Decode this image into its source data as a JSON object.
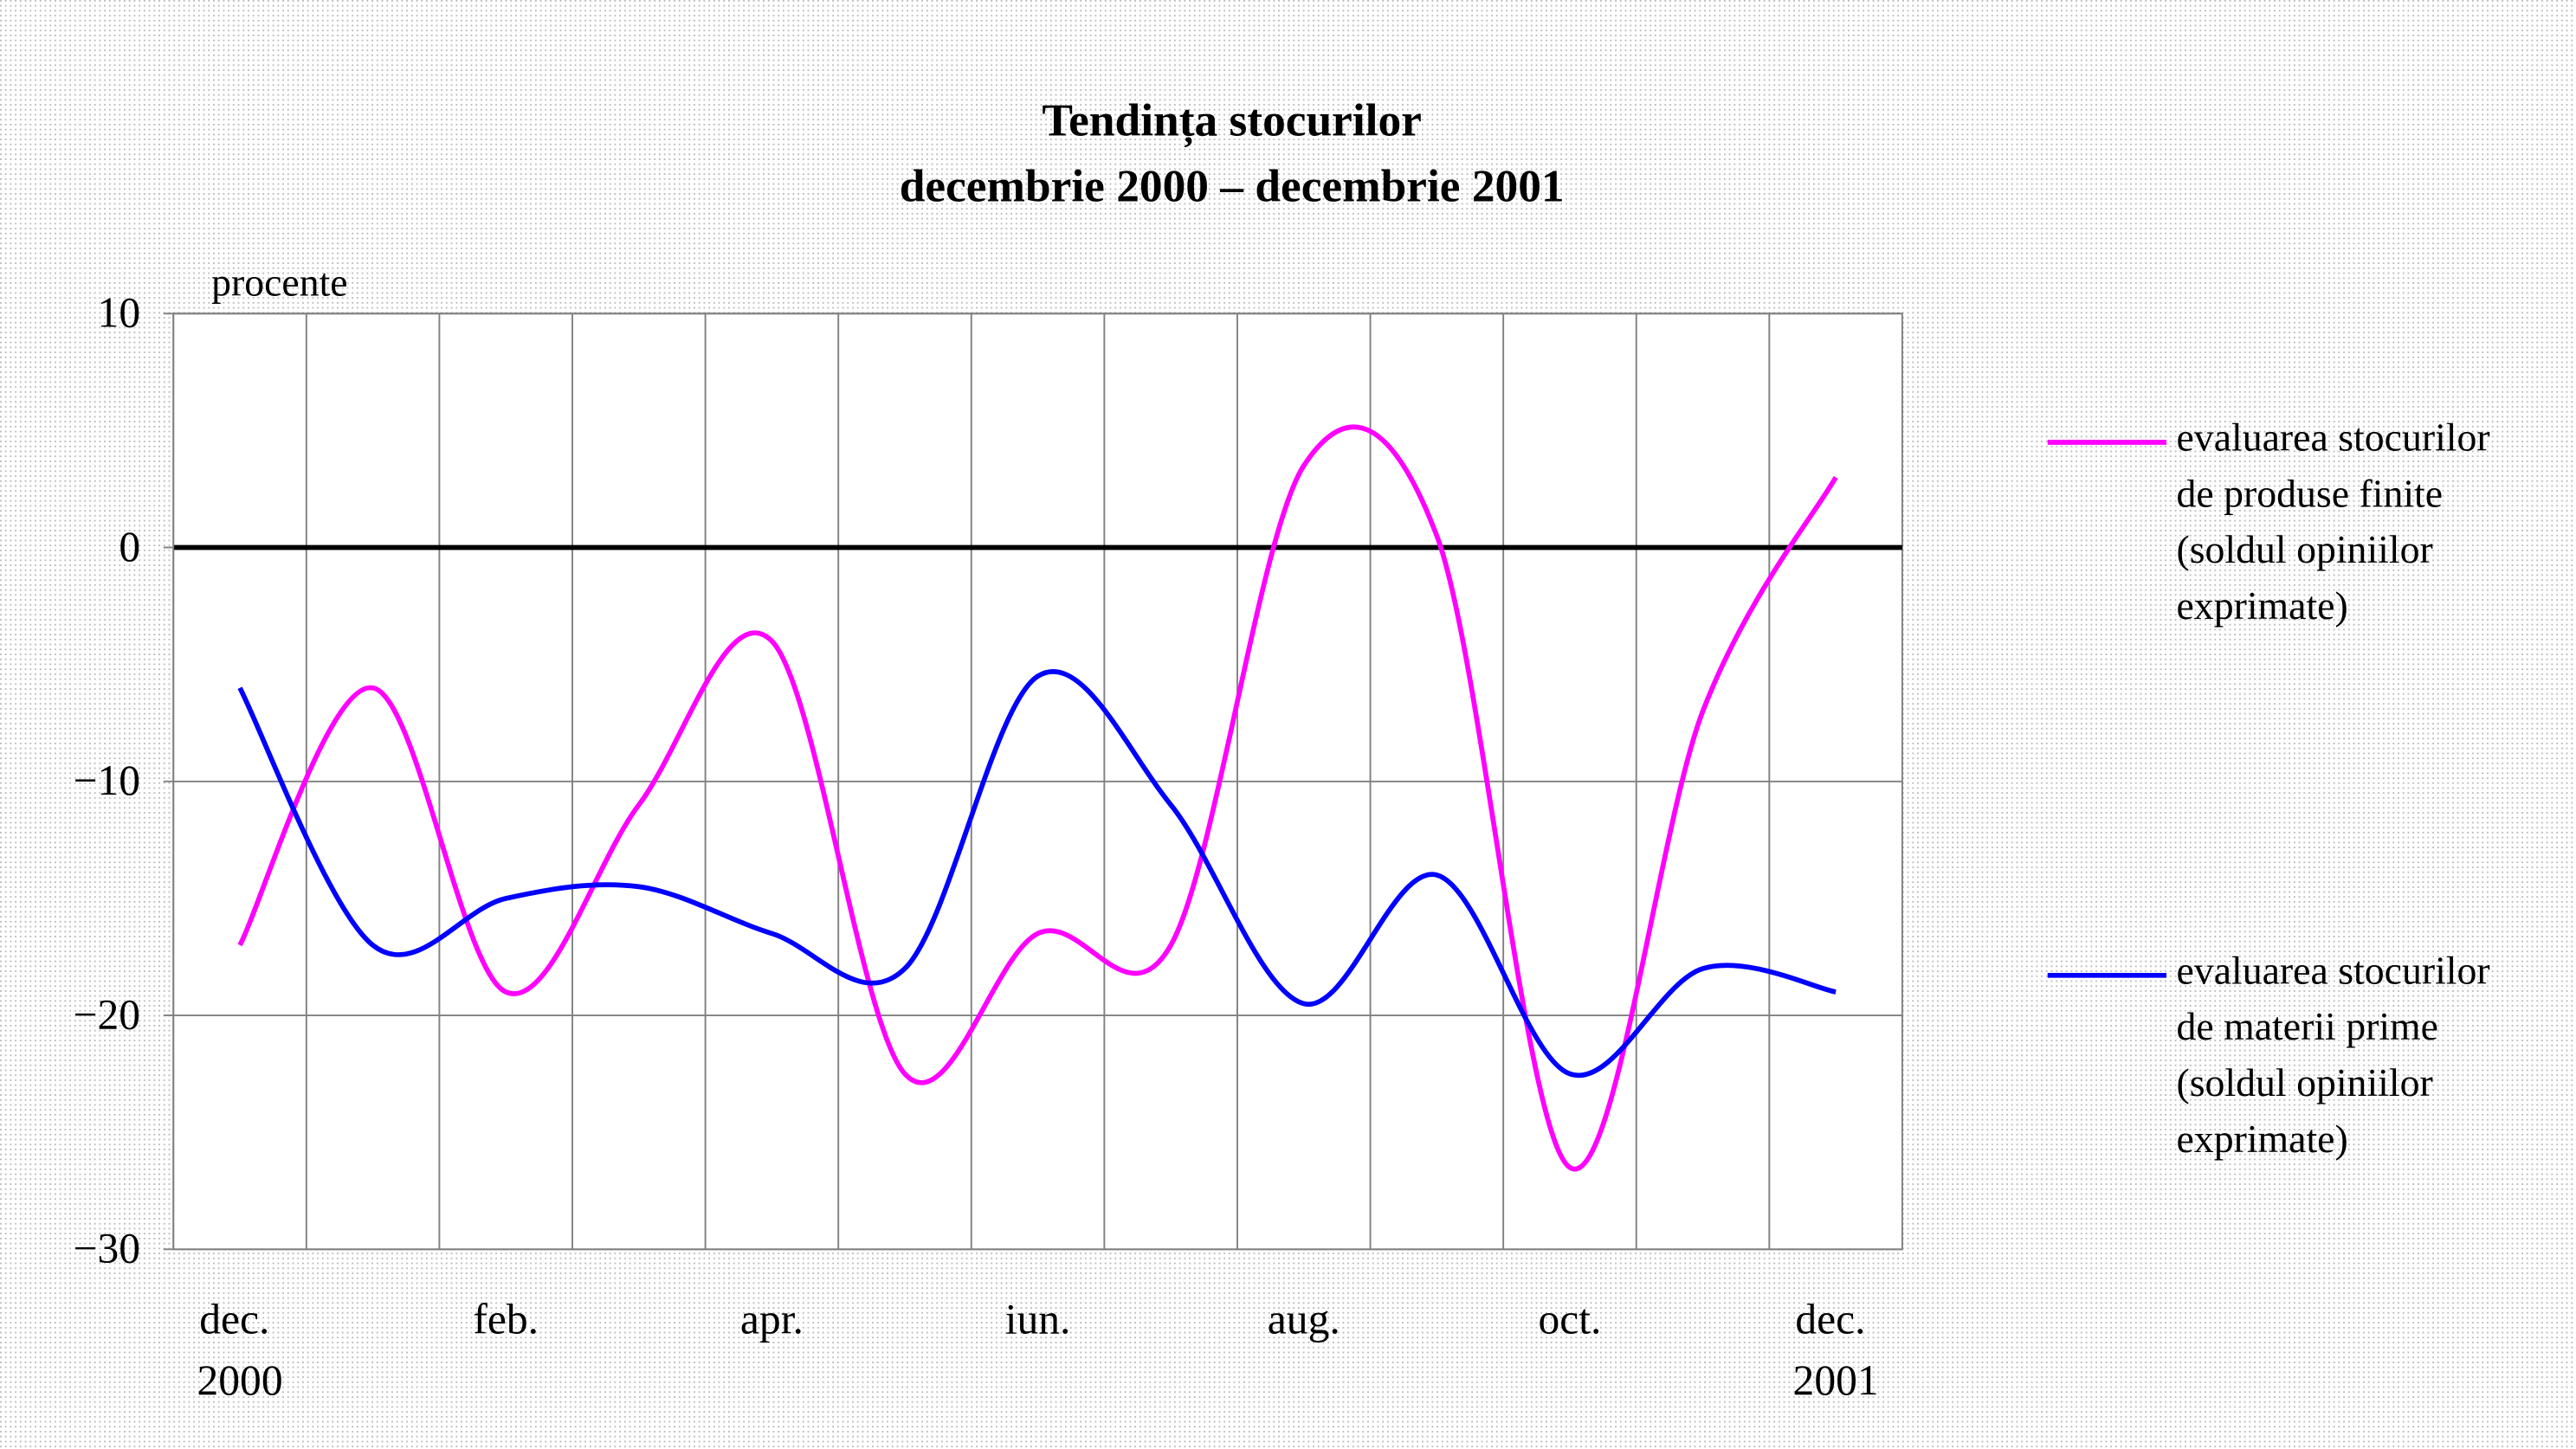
{
  "chart_data": {
    "type": "line",
    "title": "Tendința stocurilor",
    "subtitle": "decembrie 2000 – decembrie 2001",
    "y_label": "procente",
    "categories": [
      "dec. 2000",
      null,
      "feb.",
      null,
      "apr.",
      null,
      "iun.",
      null,
      "aug.",
      null,
      "oct.",
      null,
      "dec. 2001"
    ],
    "series": [
      {
        "name": "evaluarea stocurilor de produse finite (soldul opiniilor exprimate)",
        "color": "#ff00ff",
        "values": [
          -17,
          -6,
          -19,
          -11,
          -4,
          -22.5,
          -16.5,
          -17,
          3.5,
          0.5,
          -26.5,
          -7,
          3
        ]
      },
      {
        "name": "evaluarea stocurilor de materii prime (soldul opiniilor exprimate)",
        "color": "#0000ff",
        "values": [
          -6,
          -17,
          -15,
          -14.5,
          -16.5,
          -18,
          -5.5,
          -11,
          -19.5,
          -14,
          -22.5,
          -18,
          -19
        ]
      }
    ],
    "ylim": [
      -30,
      10
    ],
    "yticks": [
      10,
      0,
      {
        "value": -10,
        "label": "−10"
      },
      {
        "value": -20,
        "label": "−20"
      },
      {
        "value": -30,
        "label": "−30"
      }
    ],
    "grid": true,
    "smooth": true,
    "legend": "right"
  }
}
